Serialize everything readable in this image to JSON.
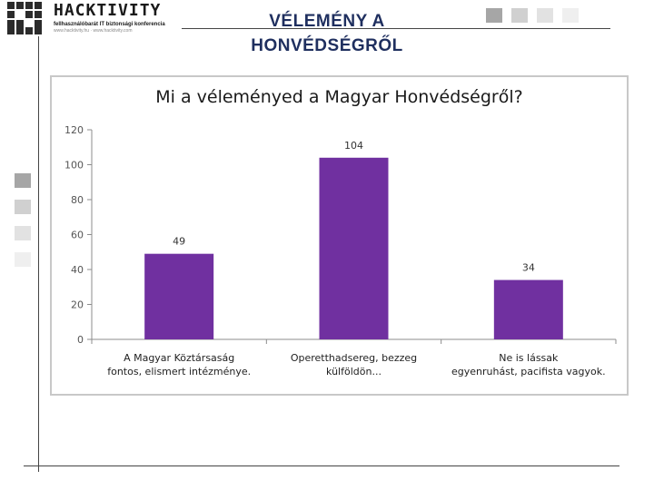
{
  "header": {
    "logo_word": "HACKTIVITY",
    "logo_tagline": "fellhasználóbarát IT biztonsági konferencia",
    "logo_sub": "www.hacktivity.hu · www.hacktivity.com",
    "title_line1": "VÉLEMÉNY A",
    "title_line2": "HONVÉDSÉGRŐL"
  },
  "colors": {
    "title": "#1f2f5f",
    "bar": "#7030a0",
    "frame": "#c8c8c8",
    "gridline": "#d9d9d9"
  },
  "chart_data": {
    "type": "bar",
    "title": "Mi a véleményed a Magyar Honvédségről?",
    "categories": [
      [
        "A Magyar Köztársaság",
        "fontos, elismert intézménye."
      ],
      [
        "Operetthadsereg, bezzeg",
        "külföldön..."
      ],
      [
        "Ne is lássak",
        "egyenruhást, pacifista vagyok."
      ]
    ],
    "values": [
      49,
      104,
      34
    ],
    "ylim": [
      0,
      120
    ],
    "yticks": [
      0,
      20,
      40,
      60,
      80,
      100,
      120
    ],
    "grid": false,
    "legend": "none",
    "xlabel": "",
    "ylabel": ""
  }
}
